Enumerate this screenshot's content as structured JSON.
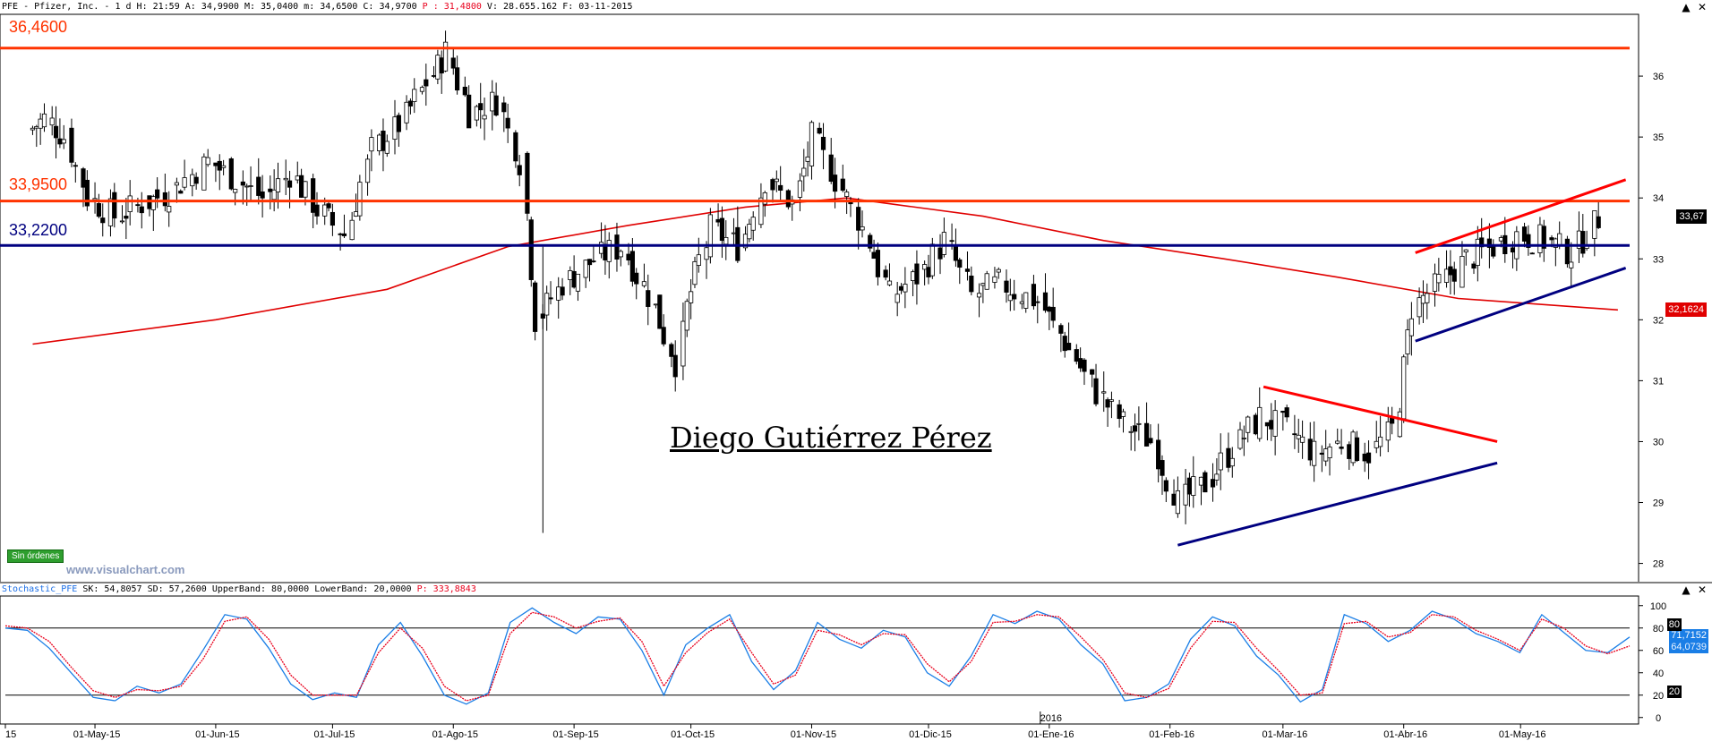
{
  "header": {
    "symbol": "PFE - Pfizer, Inc. -",
    "timeframe": "1 d",
    "details": "H: 21:59 A: 34,9900 M: 35,0400 m: 34,6500 C: 34,9700",
    "percent_label": "P : 31,4800",
    "volume_and_date": "V: 28.655.162 F: 03-11-2015"
  },
  "stochastic_header": {
    "name": "Stochastic_PFE",
    "values": "SK: 54,8057 SD: 57,2600 UpperBand: 80,0000 LowerBand: 20,0000",
    "p_label": "P: 333,8843"
  },
  "annotations": {
    "watermark": "Diego Gutiérrez Pérez",
    "orders_badge": "Sin órdenes",
    "site": "www.visualchart.com",
    "year_marker": "2016"
  },
  "level_labels": [
    {
      "text": "36,4600",
      "color": "#ff3300"
    },
    {
      "text": "33,9500",
      "color": "#ff3300"
    },
    {
      "text": "33,2200",
      "color": "#000080"
    }
  ],
  "price_tags": {
    "last_price": "33,67",
    "ma_value": "32,1624"
  },
  "stoch_tags": {
    "sk_value": "71,7152",
    "sd_value": "64,0739",
    "band_upper": "80",
    "band_lower": "20"
  },
  "colors": {
    "horizontal_red": "#ff3300",
    "horizontal_blue": "#000080",
    "ma_line": "#e00000",
    "stoch_k": "#1a7ee6",
    "stoch_d": "#e8001c"
  },
  "chart_data": [
    {
      "type": "candlestick",
      "title": "PFE - Pfizer, Inc. - 1 d",
      "x_tick_labels": [
        "15",
        "01-May-15",
        "01-Jun-15",
        "01-Jul-15",
        "01-Ago-15",
        "01-Sep-15",
        "01-Oct-15",
        "01-Nov-15",
        "01-Dic-15",
        "01-Ene-16",
        "01-Feb-16",
        "01-Mar-16",
        "01-Abr-16",
        "01-May-16"
      ],
      "y_ticks": [
        28,
        29,
        30,
        31,
        32,
        33,
        34,
        35,
        36
      ],
      "ylim": [
        27.7,
        37.0
      ],
      "close_series": [
        {
          "date": "2015-04-15",
          "close": 35.1
        },
        {
          "date": "2015-04-20",
          "close": 35.3
        },
        {
          "date": "2015-04-25",
          "close": 35.0
        },
        {
          "date": "2015-05-01",
          "close": 34.0
        },
        {
          "date": "2015-05-08",
          "close": 33.7
        },
        {
          "date": "2015-05-15",
          "close": 33.9
        },
        {
          "date": "2015-05-22",
          "close": 34.1
        },
        {
          "date": "2015-06-01",
          "close": 34.6
        },
        {
          "date": "2015-06-08",
          "close": 34.3
        },
        {
          "date": "2015-06-15",
          "close": 34.0
        },
        {
          "date": "2015-06-22",
          "close": 34.4
        },
        {
          "date": "2015-06-29",
          "close": 33.8
        },
        {
          "date": "2015-07-06",
          "close": 33.4
        },
        {
          "date": "2015-07-13",
          "close": 34.8
        },
        {
          "date": "2015-07-20",
          "close": 35.2
        },
        {
          "date": "2015-07-27",
          "close": 35.9
        },
        {
          "date": "2015-08-01",
          "close": 36.4
        },
        {
          "date": "2015-08-07",
          "close": 35.4
        },
        {
          "date": "2015-08-14",
          "close": 35.6
        },
        {
          "date": "2015-08-20",
          "close": 34.6
        },
        {
          "date": "2015-08-24",
          "close": 32.0
        },
        {
          "date": "2015-08-31",
          "close": 32.6
        },
        {
          "date": "2015-09-08",
          "close": 33.0
        },
        {
          "date": "2015-09-15",
          "close": 33.2
        },
        {
          "date": "2015-09-22",
          "close": 32.4
        },
        {
          "date": "2015-09-29",
          "close": 31.3
        },
        {
          "date": "2015-10-01",
          "close": 32.2
        },
        {
          "date": "2015-10-08",
          "close": 33.5
        },
        {
          "date": "2015-10-15",
          "close": 33.2
        },
        {
          "date": "2015-10-22",
          "close": 34.3
        },
        {
          "date": "2015-10-29",
          "close": 33.9
        },
        {
          "date": "2015-11-03",
          "close": 35.0
        },
        {
          "date": "2015-11-09",
          "close": 34.3
        },
        {
          "date": "2015-11-16",
          "close": 33.5
        },
        {
          "date": "2015-11-23",
          "close": 32.4
        },
        {
          "date": "2015-11-30",
          "close": 32.7
        },
        {
          "date": "2015-12-07",
          "close": 33.3
        },
        {
          "date": "2015-12-14",
          "close": 32.4
        },
        {
          "date": "2015-12-21",
          "close": 32.6
        },
        {
          "date": "2015-12-31",
          "close": 32.3
        },
        {
          "date": "2016-01-08",
          "close": 31.5
        },
        {
          "date": "2016-01-15",
          "close": 30.8
        },
        {
          "date": "2016-01-22",
          "close": 30.3
        },
        {
          "date": "2016-01-29",
          "close": 30.0
        },
        {
          "date": "2016-02-05",
          "close": 29.0
        },
        {
          "date": "2016-02-12",
          "close": 29.3
        },
        {
          "date": "2016-02-19",
          "close": 29.9
        },
        {
          "date": "2016-02-26",
          "close": 30.4
        },
        {
          "date": "2016-03-04",
          "close": 30.2
        },
        {
          "date": "2016-03-11",
          "close": 29.8
        },
        {
          "date": "2016-03-18",
          "close": 30.0
        },
        {
          "date": "2016-03-25",
          "close": 29.8
        },
        {
          "date": "2016-03-31",
          "close": 30.2
        },
        {
          "date": "2016-04-05",
          "close": 32.2
        },
        {
          "date": "2016-04-12",
          "close": 32.6
        },
        {
          "date": "2016-04-19",
          "close": 33.0
        },
        {
          "date": "2016-04-26",
          "close": 33.2
        },
        {
          "date": "2016-05-02",
          "close": 33.4
        },
        {
          "date": "2016-05-09",
          "close": 33.3
        },
        {
          "date": "2016-05-16",
          "close": 33.1
        },
        {
          "date": "2016-05-23",
          "close": 33.67
        }
      ],
      "moving_average": [
        {
          "date": "2015-04-15",
          "value": 31.6
        },
        {
          "date": "2015-06-01",
          "value": 32.0
        },
        {
          "date": "2015-07-15",
          "value": 32.5
        },
        {
          "date": "2015-08-15",
          "value": 33.2
        },
        {
          "date": "2015-09-15",
          "value": 33.55
        },
        {
          "date": "2015-10-15",
          "value": 33.85
        },
        {
          "date": "2015-11-10",
          "value": 34.0
        },
        {
          "date": "2015-12-15",
          "value": 33.7
        },
        {
          "date": "2016-01-15",
          "value": 33.3
        },
        {
          "date": "2016-02-15",
          "value": 33.0
        },
        {
          "date": "2016-03-15",
          "value": 32.7
        },
        {
          "date": "2016-04-15",
          "value": 32.35
        },
        {
          "date": "2016-05-26",
          "value": 32.1624
        }
      ],
      "horizontal_levels": [
        36.46,
        33.95,
        33.22
      ],
      "trendlines": [
        {
          "name": "triangle-upper",
          "from": {
            "date": "2016-02-25",
            "value": 30.9
          },
          "to": {
            "date": "2016-04-25",
            "value": 30.0
          },
          "color": "#ff0000"
        },
        {
          "name": "triangle-lower",
          "from": {
            "date": "2016-02-03",
            "value": 28.3
          },
          "to": {
            "date": "2016-04-25",
            "value": 29.65
          },
          "color": "#000080"
        },
        {
          "name": "channel-upper",
          "from": {
            "date": "2016-04-04",
            "value": 33.1
          },
          "to": {
            "date": "2016-05-28",
            "value": 34.3
          },
          "color": "#ff0000"
        },
        {
          "name": "channel-lower",
          "from": {
            "date": "2016-04-04",
            "value": 31.65
          },
          "to": {
            "date": "2016-05-28",
            "value": 32.85
          },
          "color": "#000080"
        }
      ]
    },
    {
      "type": "line",
      "title": "Stochastic_PFE",
      "y_ticks": [
        0,
        20,
        40,
        60,
        80,
        100
      ],
      "ylim": [
        -5,
        107
      ],
      "bands": [
        20,
        80
      ],
      "series": [
        {
          "name": "SK",
          "values": [
            80,
            78,
            62,
            40,
            18,
            15,
            28,
            22,
            30,
            60,
            92,
            88,
            62,
            30,
            16,
            22,
            18,
            65,
            85,
            55,
            20,
            12,
            22,
            85,
            98,
            85,
            75,
            90,
            88,
            60,
            20,
            65,
            80,
            92,
            50,
            25,
            42,
            85,
            70,
            62,
            78,
            72,
            40,
            28,
            55,
            92,
            84,
            95,
            88,
            65,
            48,
            15,
            18,
            30,
            70,
            90,
            82,
            55,
            38,
            14,
            25,
            92,
            84,
            68,
            78,
            95,
            88,
            75,
            68,
            58,
            92,
            76,
            60,
            58,
            72
          ]
        },
        {
          "name": "SD",
          "values": [
            82,
            80,
            68,
            45,
            24,
            18,
            25,
            24,
            28,
            52,
            86,
            90,
            70,
            38,
            20,
            20,
            20,
            58,
            80,
            62,
            28,
            15,
            20,
            75,
            94,
            90,
            80,
            86,
            89,
            68,
            28,
            58,
            76,
            88,
            58,
            30,
            38,
            78,
            74,
            65,
            75,
            74,
            48,
            32,
            50,
            85,
            86,
            92,
            90,
            72,
            52,
            22,
            18,
            26,
            62,
            86,
            85,
            62,
            42,
            20,
            22,
            84,
            86,
            72,
            76,
            92,
            90,
            78,
            70,
            60,
            88,
            80,
            64,
            57,
            64
          ]
        }
      ]
    }
  ]
}
